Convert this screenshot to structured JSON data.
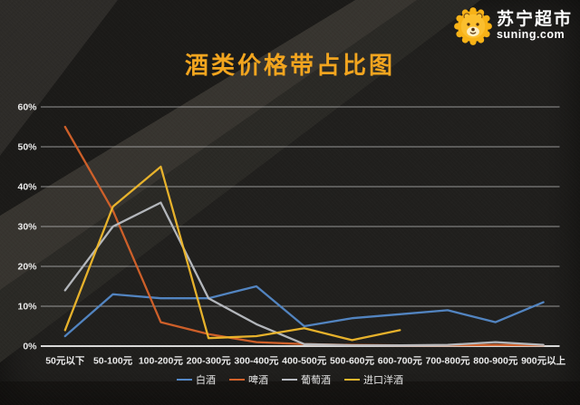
{
  "header": {
    "title": "酒类价格带占比图",
    "logo": {
      "brand_cn": "苏宁超市",
      "brand_domain": "suning.com"
    }
  },
  "chart_data": {
    "type": "line",
    "title": "酒类价格带占比图",
    "categories": [
      "50元以下",
      "50-100元",
      "100-200元",
      "200-300元",
      "300-400元",
      "400-500元",
      "500-600元",
      "600-700元",
      "700-800元",
      "800-900元",
      "900元以上"
    ],
    "series": [
      {
        "name": "白酒",
        "color": "#5488c7",
        "values": [
          2.5,
          13,
          12,
          12,
          15,
          5,
          7,
          8,
          9,
          6,
          11
        ]
      },
      {
        "name": "啤酒",
        "color": "#d4622a",
        "values": [
          55,
          34,
          6,
          3,
          1,
          0.5,
          0.3,
          0.2,
          0.2,
          0.3,
          0.2
        ]
      },
      {
        "name": "葡萄酒",
        "color": "#b9bcc2",
        "values": [
          14,
          30,
          36,
          12,
          5.5,
          0.5,
          0.2,
          0.2,
          0.3,
          1,
          0.3
        ]
      },
      {
        "name": "进口洋酒",
        "color": "#eeb72c",
        "values": [
          4,
          35,
          45,
          2,
          2.5,
          4.5,
          1.5,
          4,
          null,
          null,
          null
        ]
      }
    ],
    "ylim": [
      0,
      60
    ],
    "ytick_step": 10,
    "ytick_labels": [
      "0%",
      "10%",
      "20%",
      "30%",
      "40%",
      "50%",
      "60%"
    ],
    "grid": true,
    "legend_position": "bottom",
    "xlabel": "",
    "ylabel": ""
  },
  "colors": {
    "title": "#f2a51f",
    "axis_text": "#ebebeb",
    "gridline": "#b3b3b3",
    "axis_line": "#e3e3e3",
    "lion": "#f7b217",
    "background": "#201f1d"
  }
}
